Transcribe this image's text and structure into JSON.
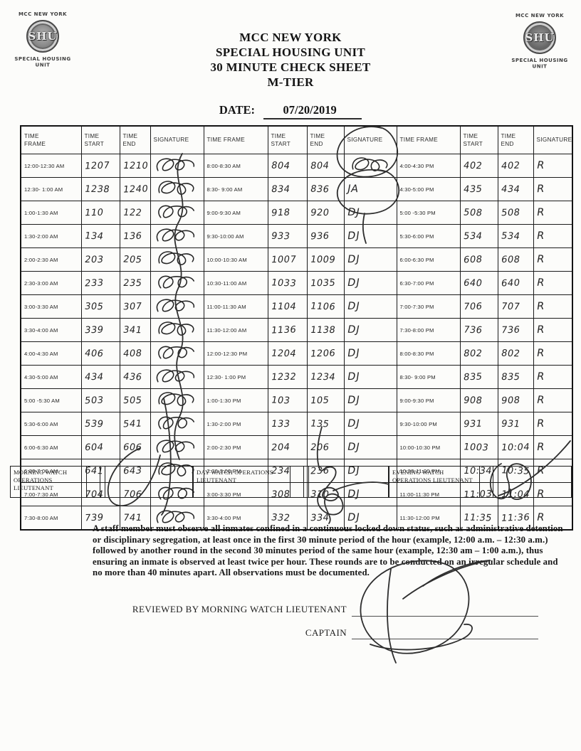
{
  "logo": {
    "top_text": "MCC NEW YORK",
    "seal_text": "SHU",
    "bottom_text": "SPECIAL HOUSING UNIT"
  },
  "title": {
    "line1": "MCC NEW YORK",
    "line2": "SPECIAL HOUSING UNIT",
    "line3": "30 MINUTE CHECK SHEET",
    "line4": "M-TIER"
  },
  "date": {
    "label": "DATE:",
    "value": "07/20/2019"
  },
  "table": {
    "column_headers": {
      "time_frame": "TIME FRAME",
      "time_start": "TIME START",
      "time_end": "TIME END",
      "signature": "SIGNATURE"
    },
    "sections": [
      {
        "name": "midnight-to-8am",
        "rows": [
          {
            "frame": "12:00-12:30 AM",
            "start": "1207",
            "end": "1210",
            "sig": "scribble"
          },
          {
            "frame": "12:30- 1:00 AM",
            "start": "1238",
            "end": "1240",
            "sig": "scribble"
          },
          {
            "frame": "1:00-1:30 AM",
            "start": "110",
            "end": "122",
            "sig": "scribble"
          },
          {
            "frame": "1:30-2:00 AM",
            "start": "134",
            "end": "136",
            "sig": "scribble"
          },
          {
            "frame": "2:00-2:30 AM",
            "start": "203",
            "end": "205",
            "sig": "scribble"
          },
          {
            "frame": "2:30-3:00 AM",
            "start": "233",
            "end": "235",
            "sig": "scribble"
          },
          {
            "frame": "3:00-3:30 AM",
            "start": "305",
            "end": "307",
            "sig": "scribble"
          },
          {
            "frame": "3:30-4:00 AM",
            "start": "339",
            "end": "341",
            "sig": "scribble"
          },
          {
            "frame": "4:00-4:30 AM",
            "start": "406",
            "end": "408",
            "sig": "scribble"
          },
          {
            "frame": "4:30-5:00 AM",
            "start": "434",
            "end": "436",
            "sig": "scribble"
          },
          {
            "frame": "5:00 -5:30 AM",
            "start": "503",
            "end": "505",
            "sig": "scribble"
          },
          {
            "frame": "5:30-6:00 AM",
            "start": "539",
            "end": "541",
            "sig": "scribble"
          },
          {
            "frame": "6:00-6:30 AM",
            "start": "604",
            "end": "606",
            "sig": "scribble"
          },
          {
            "frame": "6:30-7:00 AM",
            "start": "641",
            "end": "643",
            "sig": "scribble"
          },
          {
            "frame": "7:00-7:30 AM",
            "start": "704",
            "end": "706",
            "sig": "scribble"
          },
          {
            "frame": "7:30-8:00 AM",
            "start": "739",
            "end": "741",
            "sig": "scribble"
          }
        ]
      },
      {
        "name": "8am-to-4pm",
        "rows": [
          {
            "frame": "8:00-8:30 AM",
            "start": "804",
            "end": "804",
            "sig": "scribble"
          },
          {
            "frame": "8:30- 9:00 AM",
            "start": "834",
            "end": "836",
            "sig": "JA"
          },
          {
            "frame": "9:00-9:30 AM",
            "start": "918",
            "end": "920",
            "sig": "DJ"
          },
          {
            "frame": "9:30-10:00 AM",
            "start": "933",
            "end": "936",
            "sig": "DJ"
          },
          {
            "frame": "10:00-10:30 AM",
            "start": "1007",
            "end": "1009",
            "sig": "DJ"
          },
          {
            "frame": "10:30-11:00 AM",
            "start": "1033",
            "end": "1035",
            "sig": "DJ"
          },
          {
            "frame": "11:00-11:30 AM",
            "start": "1104",
            "end": "1106",
            "sig": "DJ"
          },
          {
            "frame": "11:30-12:00 AM",
            "start": "1136",
            "end": "1138",
            "sig": "DJ"
          },
          {
            "frame": "12:00-12:30 PM",
            "start": "1204",
            "end": "1206",
            "sig": "DJ"
          },
          {
            "frame": "12:30- 1:00 PM",
            "start": "1232",
            "end": "1234",
            "sig": "DJ"
          },
          {
            "frame": "1:00-1:30 PM",
            "start": "103",
            "end": "105",
            "sig": "DJ"
          },
          {
            "frame": "1:30-2:00 PM",
            "start": "133",
            "end": "135",
            "sig": "DJ"
          },
          {
            "frame": "2:00-2:30 PM",
            "start": "204",
            "end": "206",
            "sig": "DJ"
          },
          {
            "frame": "2:30-3:00 PM",
            "start": "234",
            "end": "236",
            "sig": "DJ"
          },
          {
            "frame": "3:00-3:30 PM",
            "start": "308",
            "end": "310",
            "sig": "DJ"
          },
          {
            "frame": "3:30-4:00 PM",
            "start": "332",
            "end": "334",
            "sig": "DJ"
          }
        ]
      },
      {
        "name": "4pm-to-midnight",
        "rows": [
          {
            "frame": "4:00-4:30 PM",
            "start": "402",
            "end": "402",
            "sig": "R"
          },
          {
            "frame": "4:30-5:00 PM",
            "start": "435",
            "end": "434",
            "sig": "R"
          },
          {
            "frame": "5:00 -5:30 PM",
            "start": "508",
            "end": "508",
            "sig": "R"
          },
          {
            "frame": "5:30-6:00 PM",
            "start": "534",
            "end": "534",
            "sig": "R"
          },
          {
            "frame": "6:00-6:30 PM",
            "start": "608",
            "end": "608",
            "sig": "R"
          },
          {
            "frame": "6:30-7:00 PM",
            "start": "640",
            "end": "640",
            "sig": "R"
          },
          {
            "frame": "7:00-7:30 PM",
            "start": "706",
            "end": "707",
            "sig": "R"
          },
          {
            "frame": "7:30-8:00 PM",
            "start": "736",
            "end": "736",
            "sig": "R"
          },
          {
            "frame": "8:00-8:30 PM",
            "start": "802",
            "end": "802",
            "sig": "R"
          },
          {
            "frame": "8:30- 9:00 PM",
            "start": "835",
            "end": "835",
            "sig": "R"
          },
          {
            "frame": "9:00-9:30 PM",
            "start": "908",
            "end": "908",
            "sig": "R"
          },
          {
            "frame": "9:30-10:00 PM",
            "start": "931",
            "end": "931",
            "sig": "R"
          },
          {
            "frame": "10:00-10:30 PM",
            "start": "1003",
            "end": "10:04",
            "sig": "R"
          },
          {
            "frame": "10:30-11:00 PM",
            "start": "10:34",
            "end": "10:35",
            "sig": "R"
          },
          {
            "frame": "11:00-11:30 PM",
            "start": "11:03",
            "end": "11:04",
            "sig": "R"
          },
          {
            "frame": "11:30-12:00 PM",
            "start": "11:35",
            "end": "11:36",
            "sig": "R"
          }
        ]
      }
    ]
  },
  "watch_strip": {
    "boxes": [
      {
        "label": "MORNING WATCH OPERATIONS LIEUTENANT"
      },
      {
        "label": "DAY WATCH OPERATIONS LIEUTENANT"
      },
      {
        "label": "EVENING WATCH OPERATIONS LIEUTENANT"
      }
    ]
  },
  "notice": "A staff member must observe all inmates confined in a continuous locked down status, such as administrative detention or disciplinary segregation, at least once in the first 30 minute period of the hour (example, 12:00 a.m. – 12:30 a.m.) followed by another round in the second 30 minutes period of the same hour (example, 12:30 am – 1:00 a.m.), thus ensuring an inmate is observed at least twice per hour. These rounds are to be conducted on an irregular schedule and no more than 40 minutes apart. All observations must be documented.",
  "review": {
    "reviewed_by_label": "REVIEWED BY MORNING WATCH LIEUTENANT",
    "captain_label": "CAPTAIN"
  }
}
